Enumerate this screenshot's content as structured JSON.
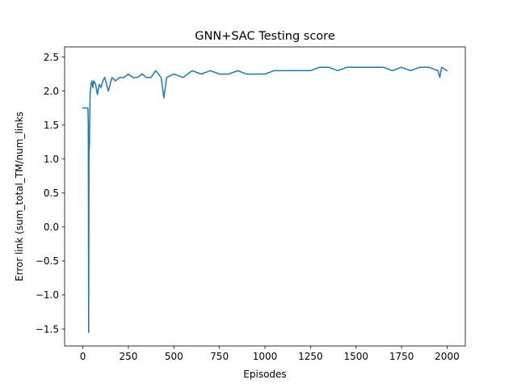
{
  "chart_data": {
    "type": "line",
    "title": "GNN+SAC Testing score",
    "xlabel": "Episodes",
    "ylabel": "Error link (sum_total_TM/num_links",
    "xlim": [
      -100,
      2100
    ],
    "ylim": [
      -1.75,
      2.65
    ],
    "grid": false,
    "x_ticks": [
      0,
      250,
      500,
      750,
      1000,
      1250,
      1500,
      1750,
      2000
    ],
    "x_tick_labels": [
      "0",
      "250",
      "500",
      "750",
      "1000",
      "1250",
      "1500",
      "1750",
      "2000"
    ],
    "y_ticks": [
      -1.5,
      -1.0,
      -0.5,
      0.0,
      0.5,
      1.0,
      1.5,
      2.0,
      2.5
    ],
    "y_tick_labels": [
      "−1.5",
      "−1.0",
      "−0.5",
      "0.0",
      "0.5",
      "1.0",
      "1.5",
      "2.0",
      "2.5"
    ],
    "series": [
      {
        "color": "#1f77b4",
        "x": [
          0,
          10,
          20,
          28,
          30,
          32,
          34,
          36,
          38,
          40,
          45,
          50,
          55,
          60,
          70,
          80,
          90,
          100,
          110,
          120,
          140,
          160,
          180,
          200,
          225,
          250,
          275,
          300,
          325,
          350,
          375,
          400,
          430,
          445,
          460,
          500,
          550,
          600,
          650,
          700,
          750,
          800,
          850,
          900,
          950,
          1000,
          1050,
          1100,
          1150,
          1200,
          1250,
          1300,
          1350,
          1400,
          1450,
          1500,
          1550,
          1600,
          1650,
          1700,
          1750,
          1800,
          1850,
          1900,
          1950,
          1960,
          1970,
          2000
        ],
        "y": [
          1.75,
          1.75,
          1.75,
          1.75,
          1.5,
          -1.55,
          1.35,
          1.15,
          1.6,
          1.95,
          2.1,
          2.15,
          2.05,
          2.15,
          2.1,
          1.95,
          2.1,
          2.05,
          2.15,
          2.2,
          2.0,
          2.2,
          2.15,
          2.2,
          2.2,
          2.25,
          2.2,
          2.2,
          2.25,
          2.2,
          2.2,
          2.3,
          2.2,
          1.9,
          2.2,
          2.25,
          2.2,
          2.3,
          2.25,
          2.3,
          2.25,
          2.25,
          2.3,
          2.25,
          2.25,
          2.25,
          2.3,
          2.3,
          2.3,
          2.3,
          2.3,
          2.35,
          2.35,
          2.3,
          2.35,
          2.35,
          2.35,
          2.35,
          2.35,
          2.3,
          2.35,
          2.3,
          2.35,
          2.35,
          2.3,
          2.2,
          2.35,
          2.3
        ]
      }
    ]
  }
}
